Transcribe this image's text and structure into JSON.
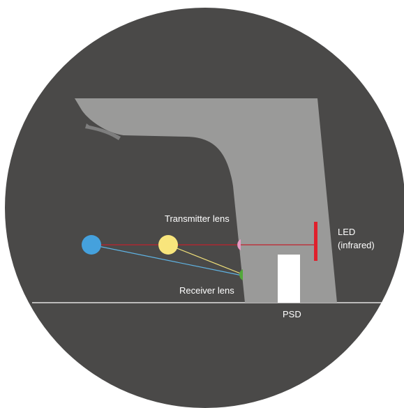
{
  "labels": {
    "transmitter_lens": "Transmitter lens",
    "receiver_lens": "Receiver lens",
    "led_line1": "LED",
    "led_line2": "(infrared)",
    "psd": "PSD"
  },
  "colors": {
    "background_circle": "#4a4948",
    "faucet_body": "#9a9a99",
    "aerator": "#7e7e7e",
    "emitted_beam": "#c0212d",
    "led_emitter": "#e0202c",
    "reflected_beam_yellow": "#f3e27a",
    "reflected_beam_blue": "#5fb3e3",
    "target_far": "#45a1dd",
    "target_near": "#f8e57c",
    "transmitter_lens": "#e79ac4",
    "receiver_lens": "#52a83a",
    "psd_sensor": "#ffffff",
    "countertop_line": "#ffffff",
    "label_text": "#ffffff"
  }
}
